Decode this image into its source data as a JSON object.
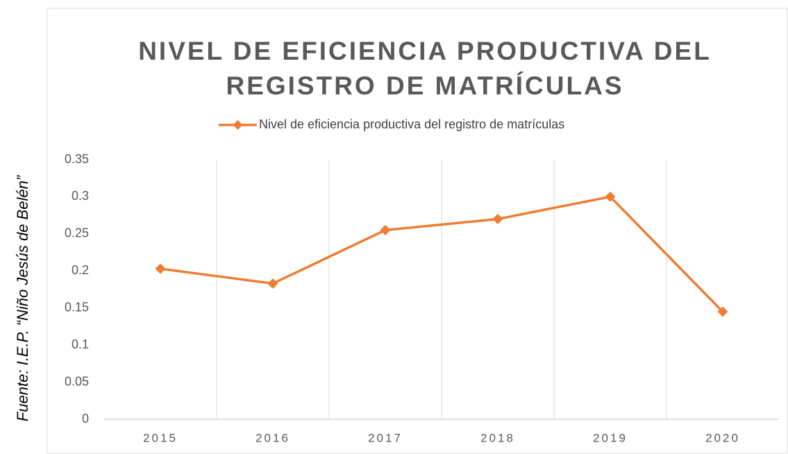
{
  "chart_data": {
    "type": "line",
    "title": [
      "NIVEL DE EFICIENCIA PRODUCTIVA DEL",
      "REGISTRO DE MATRÍCULAS"
    ],
    "source": "Fuente: I.E.P. “Niño Jesús de Belén”",
    "categories": [
      "2015",
      "2016",
      "2017",
      "2018",
      "2019",
      "2020"
    ],
    "series": [
      {
        "name": "Nivel de eficiencia productiva del registro de matrículas",
        "color": "#ed7d31",
        "values": [
          0.203,
          0.183,
          0.255,
          0.27,
          0.3,
          0.145
        ]
      }
    ],
    "ylim": [
      0,
      0.35
    ],
    "yticks": [
      0,
      0.05,
      0.1,
      0.15,
      0.2,
      0.25,
      0.3,
      0.35
    ],
    "grid": "x",
    "legend": "top"
  }
}
